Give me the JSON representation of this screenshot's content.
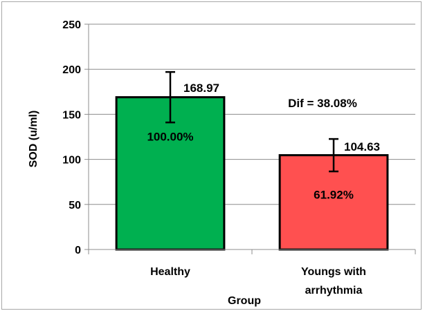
{
  "chart_data": {
    "type": "bar",
    "categories": [
      [
        "Healthy"
      ],
      [
        "Youngs with",
        "arrhythmia"
      ]
    ],
    "values": [
      168.97,
      104.63
    ],
    "error": [
      28,
      18
    ],
    "value_labels": [
      "168.97",
      "104.63"
    ],
    "percent_labels": [
      "100.00%",
      "61.92%"
    ],
    "bar_colors": [
      "#00b050",
      "#ff5050"
    ],
    "annotation": "Dif = 38.08%",
    "xlabel": "Group",
    "ylabel": "SOD (u/ml)",
    "ylim": [
      0,
      250
    ],
    "yticks": [
      0,
      50,
      100,
      150,
      200,
      250
    ],
    "grid": true,
    "legend": "none"
  }
}
